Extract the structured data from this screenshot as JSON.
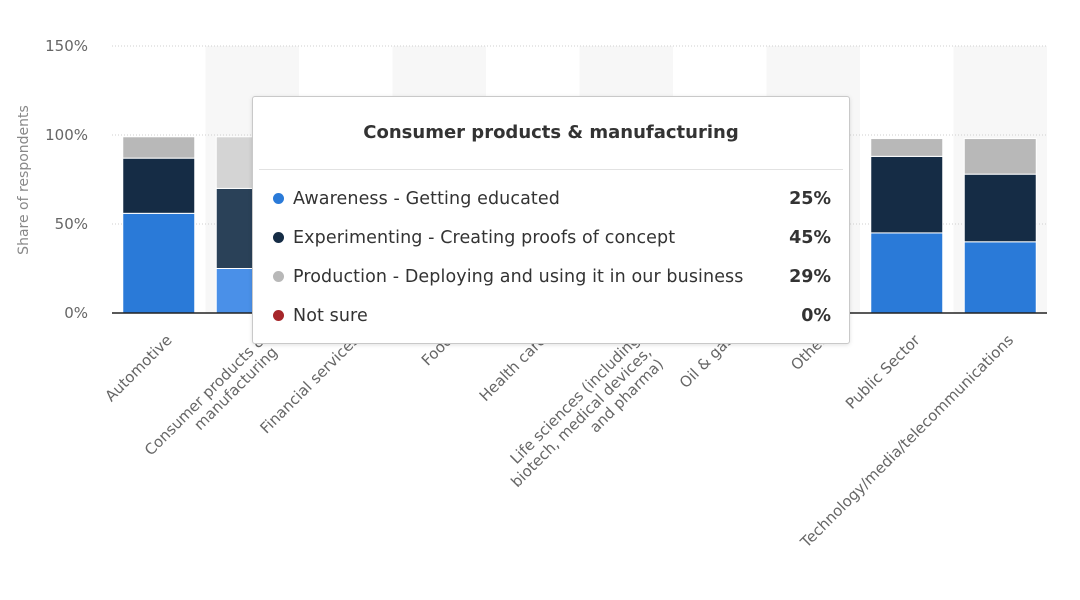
{
  "chart_data": {
    "type": "bar",
    "stacked": true,
    "ylabel": "Share of respondents",
    "ylim": [
      0,
      150
    ],
    "yticks": [
      "0%",
      "50%",
      "100%",
      "150%"
    ],
    "grid": true,
    "categories": [
      "Automotive",
      "Consumer products & manufacturing",
      "Financial services",
      "Food",
      "Health care",
      "Life sciences (including biotech, medical devices, and pharma)",
      "Oil & gas",
      "Other",
      "Public Sector",
      "Technology/media/telecommunications"
    ],
    "series": [
      {
        "name": "Awareness - Getting educated",
        "color": "#2a7ad8",
        "values": [
          56,
          25,
          null,
          null,
          null,
          null,
          null,
          null,
          45,
          40
        ]
      },
      {
        "name": "Experimenting - Creating proofs of concept",
        "color": "#152c45",
        "values": [
          31,
          45,
          null,
          null,
          null,
          null,
          null,
          null,
          43,
          38
        ]
      },
      {
        "name": "Production - Deploying and using it in our business",
        "color": "#b8b8b8",
        "values": [
          12,
          29,
          null,
          null,
          null,
          null,
          null,
          null,
          10,
          20
        ]
      },
      {
        "name": "Not sure",
        "color": "#a6262a",
        "values": [
          0,
          0,
          null,
          null,
          null,
          null,
          null,
          null,
          0,
          0
        ]
      }
    ],
    "highlighted_category": 1
  },
  "tooltip": {
    "title": "Consumer products & manufacturing",
    "rows": [
      {
        "label": "Awareness - Getting educated",
        "value": "25%",
        "color": "#2a7ad8"
      },
      {
        "label": "Experimenting - Creating proofs of concept",
        "value": "45%",
        "color": "#152c45"
      },
      {
        "label": "Production - Deploying and using it in our business",
        "value": "29%",
        "color": "#b8b8b8"
      },
      {
        "label": "Not sure",
        "value": "0%",
        "color": "#a6262a"
      }
    ]
  }
}
